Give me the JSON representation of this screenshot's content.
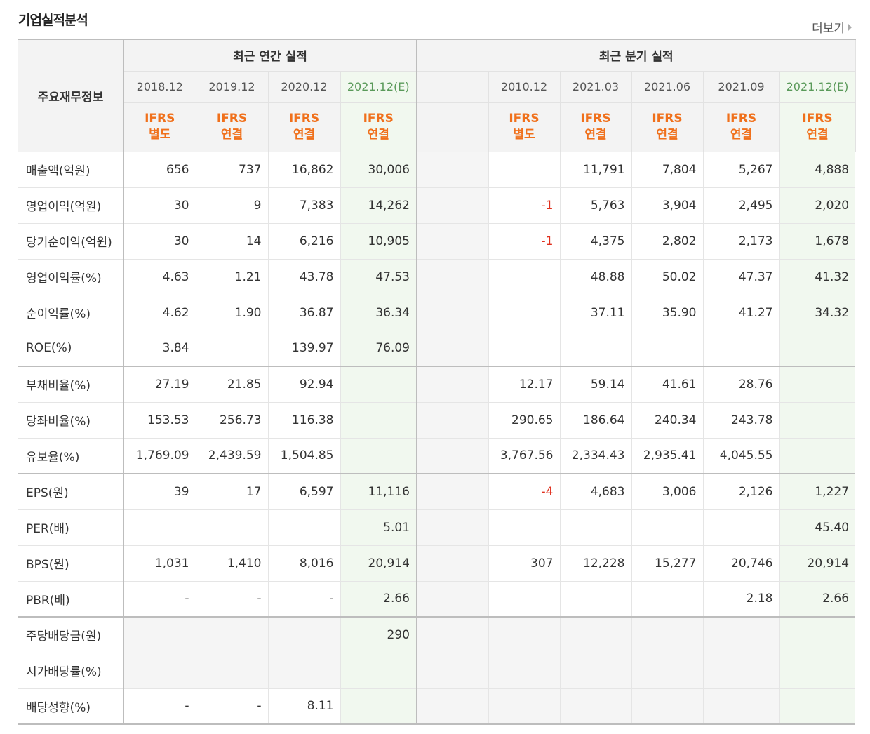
{
  "section": {
    "title": "기업실적분석",
    "more_label": "더보기"
  },
  "header": {
    "row_header": "주요재무정보",
    "annual_group": "최근 연간 실적",
    "quarter_group": "최근 분기 실적",
    "annual_periods": [
      "2018.12",
      "2019.12",
      "2020.12",
      "2021.12(E)"
    ],
    "quarter_periods": [
      "",
      "2010.12",
      "2021.03",
      "2021.06",
      "2021.09",
      "2021.12(E)"
    ],
    "annual_ifrs": [
      [
        "IFRS",
        "별도"
      ],
      [
        "IFRS",
        "연결"
      ],
      [
        "IFRS",
        "연결"
      ],
      [
        "IFRS",
        "연결"
      ]
    ],
    "quarter_ifrs": [
      [
        "",
        ""
      ],
      [
        "IFRS",
        "별도"
      ],
      [
        "IFRS",
        "연결"
      ],
      [
        "IFRS",
        "연결"
      ],
      [
        "IFRS",
        "연결"
      ],
      [
        "IFRS",
        "연결"
      ]
    ]
  },
  "rows": [
    {
      "label": "매출액(억원)",
      "annual": [
        "656",
        "737",
        "16,862",
        "30,006"
      ],
      "quarter": [
        "",
        "",
        "11,791",
        "7,804",
        "5,267",
        "4,888"
      ]
    },
    {
      "label": "영업이익(억원)",
      "annual": [
        "30",
        "9",
        "7,383",
        "14,262"
      ],
      "quarter": [
        "",
        "-1",
        "5,763",
        "3,904",
        "2,495",
        "2,020"
      ]
    },
    {
      "label": "당기순이익(억원)",
      "annual": [
        "30",
        "14",
        "6,216",
        "10,905"
      ],
      "quarter": [
        "",
        "-1",
        "4,375",
        "2,802",
        "2,173",
        "1,678"
      ]
    },
    {
      "label": "영업이익률(%)",
      "annual": [
        "4.63",
        "1.21",
        "43.78",
        "47.53"
      ],
      "quarter": [
        "",
        "",
        "48.88",
        "50.02",
        "47.37",
        "41.32"
      ]
    },
    {
      "label": "순이익률(%)",
      "annual": [
        "4.62",
        "1.90",
        "36.87",
        "36.34"
      ],
      "quarter": [
        "",
        "",
        "37.11",
        "35.90",
        "41.27",
        "34.32"
      ]
    },
    {
      "label": "ROE(%)",
      "annual": [
        "3.84",
        "",
        "139.97",
        "76.09"
      ],
      "quarter": [
        "",
        "",
        "",
        "",
        "",
        ""
      ]
    },
    {
      "label": "부채비율(%)",
      "annual": [
        "27.19",
        "21.85",
        "92.94",
        ""
      ],
      "quarter": [
        "",
        "12.17",
        "59.14",
        "41.61",
        "28.76",
        ""
      ]
    },
    {
      "label": "당좌비율(%)",
      "annual": [
        "153.53",
        "256.73",
        "116.38",
        ""
      ],
      "quarter": [
        "",
        "290.65",
        "186.64",
        "240.34",
        "243.78",
        ""
      ]
    },
    {
      "label": "유보율(%)",
      "annual": [
        "1,769.09",
        "2,439.59",
        "1,504.85",
        ""
      ],
      "quarter": [
        "",
        "3,767.56",
        "2,334.43",
        "2,935.41",
        "4,045.55",
        ""
      ]
    },
    {
      "label": "EPS(원)",
      "annual": [
        "39",
        "17",
        "6,597",
        "11,116"
      ],
      "quarter": [
        "",
        "-4",
        "4,683",
        "3,006",
        "2,126",
        "1,227"
      ]
    },
    {
      "label": "PER(배)",
      "annual": [
        "",
        "",
        "",
        "5.01"
      ],
      "quarter": [
        "",
        "",
        "",
        "",
        "",
        "45.40"
      ]
    },
    {
      "label": "BPS(원)",
      "annual": [
        "1,031",
        "1,410",
        "8,016",
        "20,914"
      ],
      "quarter": [
        "",
        "307",
        "12,228",
        "15,277",
        "20,746",
        "20,914"
      ]
    },
    {
      "label": "PBR(배)",
      "annual": [
        "-",
        "-",
        "-",
        "2.66"
      ],
      "quarter": [
        "",
        "",
        "",
        "",
        "2.18",
        "2.66"
      ]
    },
    {
      "label": "주당배당금(원)",
      "annual": [
        "",
        "",
        "",
        "290"
      ],
      "quarter": [
        "",
        "",
        "",
        "",
        "",
        ""
      ]
    },
    {
      "label": "시가배당률(%)",
      "annual": [
        "",
        "",
        "",
        ""
      ],
      "quarter": [
        "",
        "",
        "",
        "",
        "",
        ""
      ]
    },
    {
      "label": "배당성향(%)",
      "annual": [
        "-",
        "-",
        "8.11",
        ""
      ],
      "quarter": [
        "",
        "",
        "",
        "",
        "",
        ""
      ]
    }
  ],
  "colors": {
    "ifrs": "#f0701b",
    "negative": "#e0301e",
    "estimate_bg": "#f1f8ef",
    "estimate_text": "#5a9a5a"
  }
}
